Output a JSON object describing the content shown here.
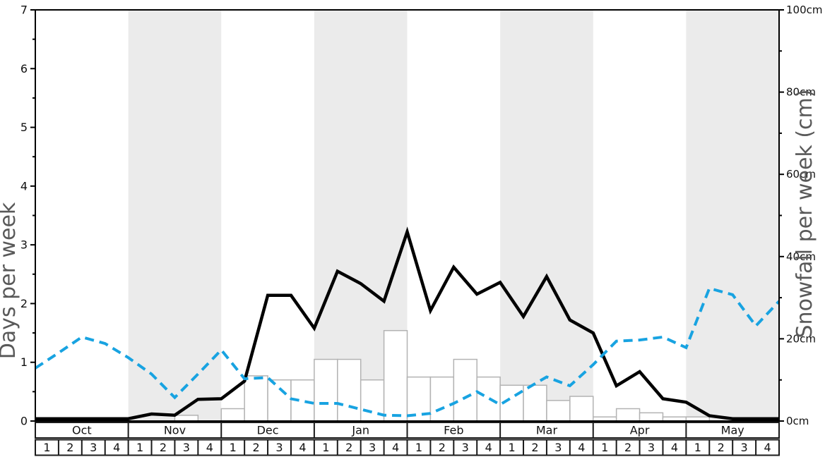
{
  "chart_data": {
    "type": "line",
    "title": "",
    "description": "Average snowfall graph: solid black line and dashed blue line in days per week (left axis), white bars of snowfall per week in cm (right axis), weekly points across Oct-May",
    "y_left": {
      "label": "Days per week",
      "min": 0,
      "max": 7,
      "major_tick_step": 1,
      "minor_tick_step": 0.5
    },
    "y_right": {
      "label": "Snowfall per week (cm)",
      "min": 0,
      "max": 100,
      "major_tick_step": 20,
      "minor_tick_step": 10,
      "tick_suffix": "cm"
    },
    "months": [
      "Oct",
      "Nov",
      "Dec",
      "Jan",
      "Feb",
      "Mar",
      "Apr",
      "May"
    ],
    "shaded_month_indices": [
      1,
      3,
      5,
      7
    ],
    "week_labels": [
      "1",
      "2",
      "3",
      "4"
    ],
    "weeks_per_month": 4,
    "series": [
      {
        "id": "solid-black-line",
        "axis": "left",
        "unit": "days per week",
        "color": "#000000",
        "dash": "solid",
        "values": [
          0.04,
          0.04,
          0.04,
          0.04,
          0.04,
          0.12,
          0.1,
          0.37,
          0.38,
          0.68,
          2.14,
          2.14,
          1.58,
          2.55,
          2.34,
          2.04,
          3.22,
          1.88,
          2.62,
          2.16,
          2.36,
          1.78,
          2.46,
          1.72,
          1.5,
          0.6,
          0.84,
          0.38,
          0.32,
          0.09,
          0.04,
          0.04
        ],
        "edge_end_value": 0.04
      },
      {
        "id": "dashed-blue-line",
        "axis": "left",
        "unit": "days per week",
        "color": "#18a3e1",
        "dash": "dashed",
        "values": [
          0.9,
          1.16,
          1.43,
          1.32,
          1.08,
          0.8,
          0.4,
          0.8,
          1.21,
          0.72,
          0.74,
          0.38,
          0.3,
          0.3,
          0.2,
          0.1,
          0.09,
          0.13,
          0.3,
          0.5,
          0.28,
          0.52,
          0.75,
          0.6,
          0.96,
          1.36,
          1.38,
          1.43,
          1.25,
          2.26,
          2.15,
          1.62
        ],
        "edge_end_value": 2.04
      }
    ],
    "bars": {
      "id": "snowfall-bars",
      "axis": "right",
      "unit": "cm",
      "fill": "#ffffff",
      "stroke": "#b3b3b3",
      "values": [
        0,
        0,
        0,
        0,
        0,
        0,
        1.4,
        0,
        3,
        11,
        10,
        10,
        15,
        15,
        10,
        22,
        10.7,
        10.7,
        15,
        10.7,
        8.7,
        8.7,
        5,
        6,
        1,
        3,
        2,
        1,
        1,
        0,
        0,
        0
      ]
    },
    "left_tick_labels": [
      "0",
      "1",
      "2",
      "3",
      "4",
      "5",
      "6",
      "7"
    ],
    "right_tick_labels": [
      "0cm",
      "20cm",
      "40cm",
      "60cm",
      "80cm",
      "100cm"
    ],
    "layout": {
      "band_color": "#ebebeb",
      "spine_color": "#000000",
      "table_border_color": "#1a1a1a",
      "grid": "off",
      "legend": "none"
    }
  }
}
